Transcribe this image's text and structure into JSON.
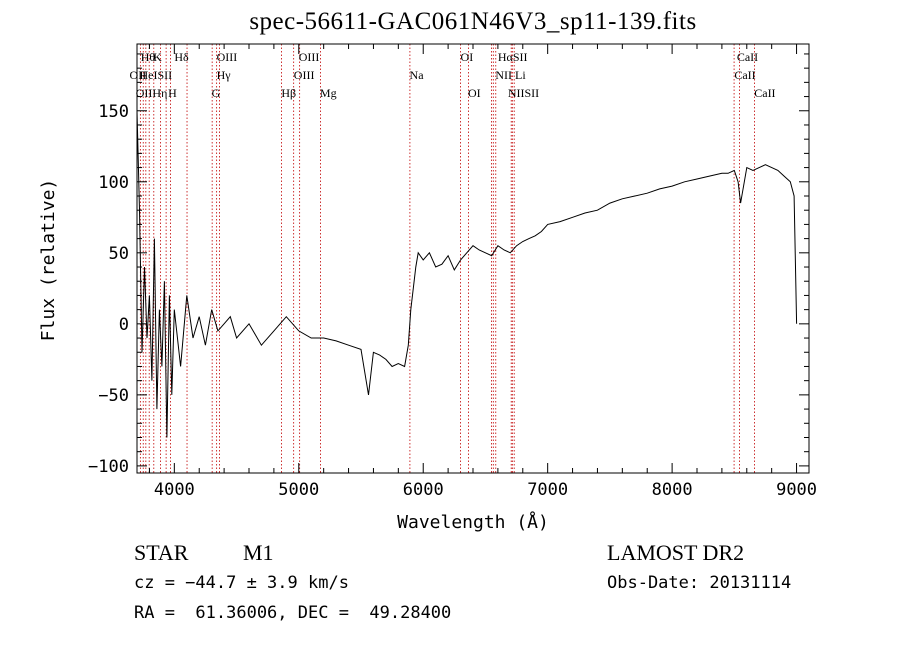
{
  "chart_data": {
    "type": "line",
    "title": "spec-56611-GAC061N46V3_sp11-139.fits",
    "xlabel": "Wavelength (Å)",
    "ylabel": "Flux (relative)",
    "xlim": [
      3700,
      9100
    ],
    "ylim": [
      -105,
      197
    ],
    "xticks": [
      4000,
      5000,
      6000,
      7000,
      8000,
      9000
    ],
    "yticks": [
      -100,
      -50,
      0,
      50,
      100,
      150
    ],
    "grid": false,
    "line_color": "#000000",
    "marker_color": "#c00000",
    "series": [
      {
        "x": [
          3700,
          3720,
          3740,
          3760,
          3780,
          3800,
          3820,
          3840,
          3860,
          3880,
          3900,
          3920,
          3940,
          3960,
          3980,
          4000,
          4050,
          4100,
          4150,
          4200,
          4250,
          4300,
          4350,
          4400,
          4450,
          4500,
          4600,
          4700,
          4800,
          4900,
          5000,
          5100,
          5200,
          5300,
          5400,
          5500,
          5560,
          5600,
          5650,
          5700,
          5750,
          5800,
          5850,
          5880,
          5900,
          5920,
          5940,
          5960,
          6000,
          6050,
          6100,
          6150,
          6200,
          6250,
          6300,
          6350,
          6400,
          6450,
          6500,
          6550,
          6600,
          6650,
          6700,
          6750,
          6800,
          6850,
          6900,
          6950,
          7000,
          7100,
          7200,
          7300,
          7400,
          7500,
          7600,
          7700,
          7800,
          7900,
          8000,
          8100,
          8200,
          8300,
          8400,
          8450,
          8500,
          8530,
          8550,
          8600,
          8650,
          8700,
          8750,
          8800,
          8850,
          8900,
          8950,
          8980,
          9000
        ],
        "y": [
          150,
          80,
          -20,
          40,
          -10,
          20,
          -40,
          60,
          -60,
          10,
          -30,
          30,
          -80,
          20,
          -50,
          10,
          -30,
          20,
          -10,
          5,
          -15,
          10,
          -5,
          0,
          5,
          -10,
          0,
          -15,
          -5,
          5,
          -5,
          -10,
          -10,
          -12,
          -15,
          -18,
          -50,
          -20,
          -22,
          -25,
          -30,
          -28,
          -30,
          -15,
          10,
          25,
          40,
          50,
          45,
          50,
          40,
          42,
          48,
          38,
          45,
          50,
          55,
          52,
          50,
          48,
          55,
          52,
          50,
          55,
          58,
          60,
          62,
          65,
          70,
          72,
          75,
          78,
          80,
          85,
          88,
          90,
          92,
          95,
          97,
          100,
          102,
          104,
          106,
          106,
          108,
          100,
          85,
          110,
          108,
          110,
          112,
          110,
          108,
          104,
          100,
          90,
          0
        ]
      }
    ],
    "lines": {
      "row1": [
        {
          "x": 3730,
          "label": "Hθ"
        },
        {
          "x": 3830,
          "label": "K"
        },
        {
          "x": 4000,
          "label": "Hδ"
        },
        {
          "x": 4340,
          "label": "OIII"
        },
        {
          "x": 5000,
          "label": "OIII"
        },
        {
          "x": 6300,
          "label": "OI"
        },
        {
          "x": 6600,
          "label": "HαSII"
        },
        {
          "x": 8520,
          "label": "CaII"
        }
      ],
      "row2": [
        {
          "x": 3640,
          "label": "OII"
        },
        {
          "x": 3720,
          "label": "HeISII"
        },
        {
          "x": 4340,
          "label": "Hγ"
        },
        {
          "x": 4960,
          "label": "OIII"
        },
        {
          "x": 5890,
          "label": "Na"
        },
        {
          "x": 6580,
          "label": "NII Li"
        },
        {
          "x": 8500,
          "label": "CaII"
        }
      ],
      "row3": [
        {
          "x": 3690,
          "label": "OIIHη"
        },
        {
          "x": 3950,
          "label": "H"
        },
        {
          "x": 4300,
          "label": "G"
        },
        {
          "x": 4860,
          "label": "Hβ"
        },
        {
          "x": 5170,
          "label": "Mg"
        },
        {
          "x": 6360,
          "label": "OI"
        },
        {
          "x": 6680,
          "label": "NIISII"
        },
        {
          "x": 8660,
          "label": "CaII"
        }
      ],
      "positions": [
        3727,
        3750,
        3771,
        3798,
        3835,
        3889,
        3934,
        3970,
        4102,
        4304,
        4340,
        4363,
        4861,
        4959,
        5007,
        5175,
        5893,
        6300,
        6363,
        6548,
        6563,
        6583,
        6707,
        6716,
        6731,
        8498,
        8542,
        8662
      ]
    }
  },
  "info": {
    "class_label": "STAR",
    "subclass": "M1",
    "cz": "cz = −44.7 ± 3.9 km/s",
    "radec": "RA =  61.36006, DEC =  49.28400",
    "survey": "LAMOST DR2",
    "obs_date": "Obs-Date: 20131114"
  }
}
